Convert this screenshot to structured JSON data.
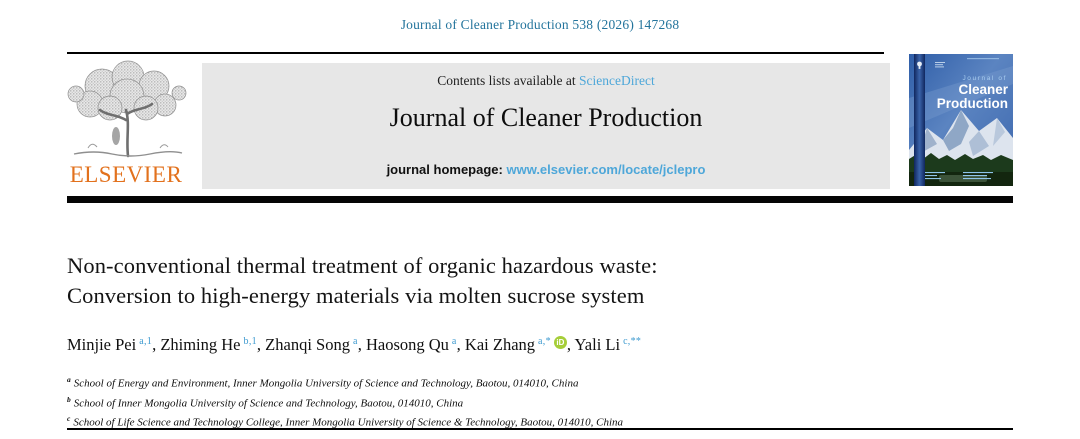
{
  "page": {
    "journal_ref": "Journal of Cleaner Production 538 (2026) 147268"
  },
  "header": {
    "contents_line_prefix": "Contents lists available at ",
    "sciencedirect_link": "ScienceDirect",
    "journal_title": "Journal of Cleaner Production",
    "homepage_prefix": "journal homepage: ",
    "homepage_url": "www.elsevier.com/locate/jclepro",
    "elsevier_logo_text": "ELSEVIER"
  },
  "cover": {
    "line1": "Journal of",
    "line2": "Cleaner",
    "line3": "Production"
  },
  "article": {
    "title_line1": "Non-conventional thermal treatment of organic hazardous waste:",
    "title_line2": "Conversion to high-energy materials via molten sucrose system",
    "authors": [
      {
        "name": "Minjie Pei",
        "sup": "a,1"
      },
      {
        "name": "Zhiming He",
        "sup": "b,1"
      },
      {
        "name": "Zhanqi Song",
        "sup": "a"
      },
      {
        "name": "Haosong Qu",
        "sup": "a"
      },
      {
        "name": "Kai Zhang",
        "sup": "a,*",
        "orcid": true
      },
      {
        "name": "Yali Li",
        "sup": "c,**"
      }
    ],
    "orcid_icon_label": "iD",
    "affiliations": [
      {
        "sup": "a",
        "text": "School of Energy and Environment, Inner Mongolia University of Science and Technology, Baotou, 014010, China"
      },
      {
        "sup": "b",
        "text": "School of Inner Mongolia University of Science and Technology, Baotou, 014010, China"
      },
      {
        "sup": "c",
        "text": "School of Life Science and Technology College, Inner Mongolia University of Science & Technology, Baotou, 014010, China"
      }
    ]
  },
  "colors": {
    "link_teal": "#23749c",
    "link_blue": "#4ea7d9",
    "superscript_blue": "#3f9bd0",
    "elsevier_orange": "#e2711d",
    "orcid_green": "#a6ce39",
    "banner_gray": "#e7e7e7",
    "cover_blue": "#3c67ad"
  }
}
